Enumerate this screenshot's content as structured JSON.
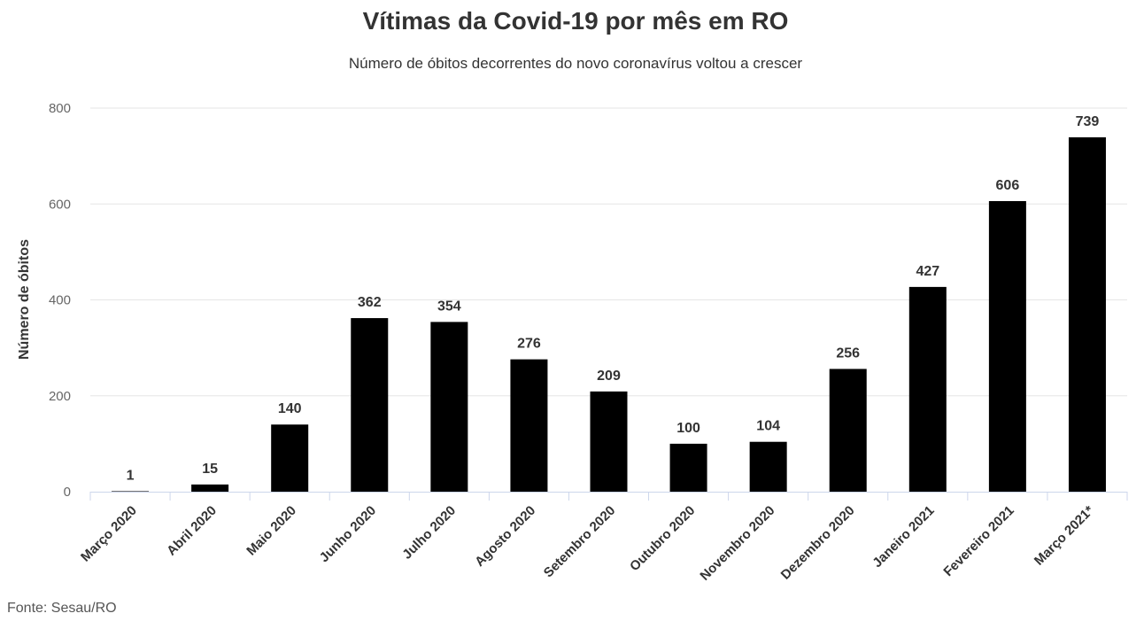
{
  "chart_data": {
    "type": "bar",
    "title": "Vítimas da Covid-19 por mês em RO",
    "subtitle": "Número de óbitos decorrentes do novo coronavírus voltou a crescer",
    "ylabel": "Número de óbitos",
    "xlabel": "",
    "ylim": [
      0,
      800
    ],
    "yticks": [
      0,
      200,
      400,
      600,
      800
    ],
    "grid": true,
    "categories": [
      "Março 2020",
      "Abril 2020",
      "Maio 2020",
      "Junho 2020",
      "Julho 2020",
      "Agosto 2020",
      "Setembro 2020",
      "Outubro 2020",
      "Novembro 2020",
      "Dezembro 2020",
      "Janeiro 2021",
      "Fevereiro 2021",
      "Março 2021*"
    ],
    "values": [
      1,
      15,
      140,
      362,
      354,
      276,
      209,
      100,
      104,
      256,
      427,
      606,
      739
    ],
    "bar_color": "#000000",
    "source": "Fonte: Sesau/RO"
  }
}
